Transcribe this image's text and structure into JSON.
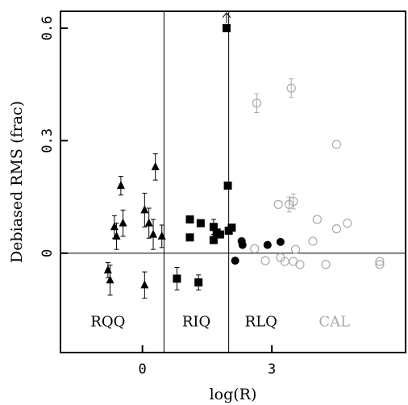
{
  "chart_data": {
    "type": "scatter",
    "title": "",
    "xlabel": "log(R)",
    "ylabel": "Debiased RMS (frac)",
    "xlim": [
      -1.9,
      6.1
    ],
    "ylim": [
      -0.265,
      0.645
    ],
    "xticks": [
      {
        "value": 0,
        "label": "0"
      },
      {
        "value": 3,
        "label": "3"
      }
    ],
    "yticks": [
      {
        "value": 0,
        "label": "0"
      },
      {
        "value": 0.3,
        "label": "0.3"
      },
      {
        "value": 0.6,
        "label": "0.6"
      }
    ],
    "grid": false,
    "reference_lines": {
      "horizontal": [
        0
      ],
      "vertical": [
        0.5,
        2.0
      ]
    },
    "regions": [
      {
        "label": "RQQ",
        "x": -0.8,
        "y": -0.195,
        "color": "#000000"
      },
      {
        "label": "RIQ",
        "x": 1.25,
        "y": -0.195,
        "color": "#000000"
      },
      {
        "label": "RLQ",
        "x": 2.75,
        "y": -0.195,
        "color": "#000000"
      },
      {
        "label": "CAL",
        "x": 4.45,
        "y": -0.195,
        "color": "#aaaaaa"
      }
    ],
    "series": [
      {
        "group": "RQQ",
        "marker": "triangle-filled",
        "color": "#000000",
        "points": [
          {
            "x": -0.8,
            "y": -0.045,
            "err": 0.02
          },
          {
            "x": -0.75,
            "y": -0.072,
            "err": 0.04
          },
          {
            "x": -0.65,
            "y": 0.07,
            "err": 0.03
          },
          {
            "x": -0.6,
            "y": 0.045,
            "err": 0.035
          },
          {
            "x": -0.5,
            "y": 0.18,
            "err": 0.025
          },
          {
            "x": -0.45,
            "y": 0.08,
            "err": 0.035
          },
          {
            "x": 0.05,
            "y": -0.085,
            "err": 0.035
          },
          {
            "x": 0.05,
            "y": 0.115,
            "err": 0.045
          },
          {
            "x": 0.15,
            "y": 0.08,
            "err": 0.04
          },
          {
            "x": 0.25,
            "y": 0.05,
            "err": 0.04
          },
          {
            "x": 0.3,
            "y": 0.23,
            "err": 0.035
          },
          {
            "x": 0.45,
            "y": 0.045,
            "err": 0.03
          }
        ]
      },
      {
        "group": "RIQ",
        "marker": "square-filled",
        "color": "#000000",
        "points": [
          {
            "x": 0.8,
            "y": -0.068,
            "err": 0.03
          },
          {
            "x": 1.1,
            "y": 0.09,
            "err": 0.0
          },
          {
            "x": 1.1,
            "y": 0.042,
            "err": 0.0
          },
          {
            "x": 1.3,
            "y": -0.078,
            "err": 0.02
          },
          {
            "x": 1.35,
            "y": 0.08,
            "err": 0.0
          },
          {
            "x": 1.65,
            "y": 0.07,
            "err": 0.02
          },
          {
            "x": 1.65,
            "y": 0.035,
            "err": 0.0
          },
          {
            "x": 1.72,
            "y": 0.055,
            "err": 0.0
          },
          {
            "x": 1.8,
            "y": 0.05,
            "err": 0.0
          },
          {
            "x": 1.95,
            "y": 0.6,
            "err": 0.0,
            "upper_arrow": true
          },
          {
            "x": 1.98,
            "y": 0.18,
            "err": 0.0
          },
          {
            "x": 2.0,
            "y": 0.06,
            "err": 0.0
          },
          {
            "x": 2.07,
            "y": 0.068,
            "err": 0.0
          }
        ]
      },
      {
        "group": "RLQ",
        "marker": "circle-filled",
        "color": "#000000",
        "points": [
          {
            "x": 2.15,
            "y": -0.02,
            "err": 0.0
          },
          {
            "x": 2.3,
            "y": 0.032,
            "err": 0.0
          },
          {
            "x": 2.32,
            "y": 0.022,
            "err": 0.0
          },
          {
            "x": 2.9,
            "y": 0.022,
            "err": 0.0
          },
          {
            "x": 3.2,
            "y": 0.03,
            "err": 0.0
          }
        ]
      },
      {
        "group": "CAL",
        "marker": "circle-open",
        "color": "#aaaaaa",
        "points": [
          {
            "x": 2.6,
            "y": 0.012,
            "err": 0.0
          },
          {
            "x": 2.65,
            "y": 0.4,
            "err": 0.025
          },
          {
            "x": 2.85,
            "y": -0.02,
            "err": 0.0
          },
          {
            "x": 3.15,
            "y": 0.13,
            "err": 0.0
          },
          {
            "x": 3.2,
            "y": -0.012,
            "err": 0.0
          },
          {
            "x": 3.3,
            "y": -0.022,
            "err": 0.0
          },
          {
            "x": 3.4,
            "y": 0.13,
            "err": 0.02
          },
          {
            "x": 3.45,
            "y": 0.44,
            "err": 0.025
          },
          {
            "x": 3.5,
            "y": 0.138,
            "err": 0.02
          },
          {
            "x": 3.5,
            "y": -0.022,
            "err": 0.0
          },
          {
            "x": 3.55,
            "y": 0.01,
            "err": 0.0
          },
          {
            "x": 3.65,
            "y": -0.03,
            "err": 0.0
          },
          {
            "x": 3.95,
            "y": 0.032,
            "err": 0.0
          },
          {
            "x": 4.05,
            "y": 0.09,
            "err": 0.0
          },
          {
            "x": 4.25,
            "y": -0.03,
            "err": 0.0
          },
          {
            "x": 4.5,
            "y": 0.29,
            "err": 0.0
          },
          {
            "x": 4.5,
            "y": 0.065,
            "err": 0.0
          },
          {
            "x": 4.75,
            "y": 0.08,
            "err": 0.0
          },
          {
            "x": 5.5,
            "y": -0.022,
            "err": 0.0
          },
          {
            "x": 5.5,
            "y": -0.03,
            "err": 0.0
          }
        ]
      }
    ]
  }
}
